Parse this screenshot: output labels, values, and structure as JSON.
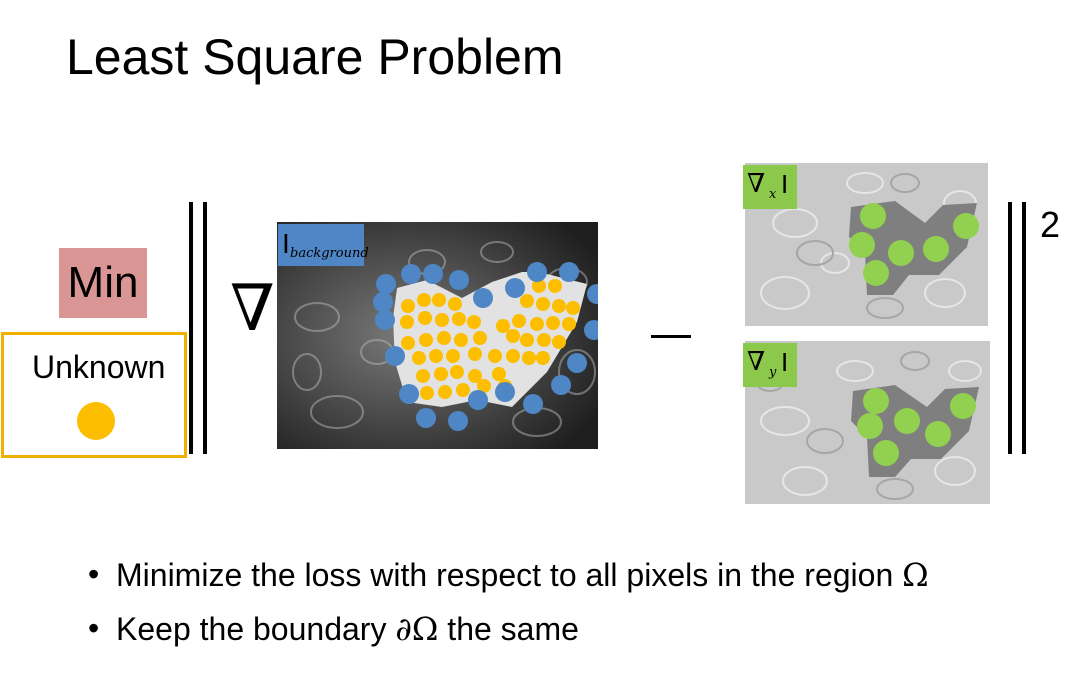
{
  "title": "Least Square Problem",
  "min_label": "Min",
  "unknown_label": "Unknown",
  "background_label": {
    "symbol": "I",
    "subscript": "background"
  },
  "nabla_symbol": "∇",
  "minus_symbol": "–",
  "exponent": "2",
  "gradient_x_label": {
    "symbol": "∇",
    "subscript": "x",
    "image": "I"
  },
  "gradient_y_label": {
    "symbol": "∇",
    "subscript": "y",
    "image": "I"
  },
  "bullets": [
    {
      "marker": "•",
      "text": "Minimize the loss with respect to all pixels in the region ",
      "math": "Ω"
    },
    {
      "marker": "•",
      "text": "Keep the boundary ",
      "math": "∂Ω",
      "suffix": " the same"
    }
  ],
  "colors": {
    "min_box": "#d99694",
    "unknown_border": "#f0b000",
    "unknown_dot": "#fdbe00",
    "boundary_dot": "#4f86c6",
    "gradient_dot": "#92d050",
    "label_blue": "#4f86c6",
    "label_green": "#8cc84b"
  }
}
